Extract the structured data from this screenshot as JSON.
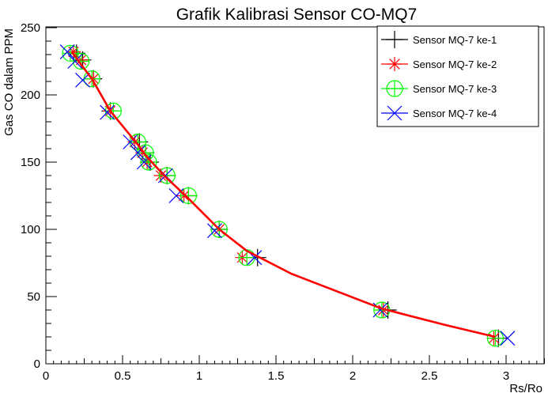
{
  "chart_data": {
    "type": "scatter",
    "title": "Grafik Kalibrasi Sensor CO-MQ7",
    "xlabel": "Rs/Ro",
    "ylabel": "Gas CO dalam PPM",
    "xlim": [
      0,
      3.25
    ],
    "ylim": [
      0,
      250
    ],
    "xticks": [
      "0",
      "0.5",
      "1",
      "1.5",
      "2",
      "2.5",
      "3"
    ],
    "yticks": [
      "0",
      "50",
      "100",
      "150",
      "200",
      "250"
    ],
    "legend_position": "top-right",
    "series": [
      {
        "name": "Sensor MQ-7 ke-1",
        "marker": "plus",
        "color": "#000000",
        "points": [
          [
            0.2,
            231
          ],
          [
            0.24,
            226
          ],
          [
            0.31,
            212
          ],
          [
            0.42,
            188
          ],
          [
            0.61,
            165
          ],
          [
            0.65,
            157
          ],
          [
            0.68,
            150
          ],
          [
            0.79,
            140
          ],
          [
            0.93,
            125
          ],
          [
            1.13,
            100
          ],
          [
            1.38,
            79
          ],
          [
            2.23,
            40
          ],
          [
            2.95,
            19
          ]
        ]
      },
      {
        "name": "Sensor MQ-7 ke-2",
        "marker": "star",
        "color": "#ff0000",
        "points": [
          [
            0.18,
            232
          ],
          [
            0.23,
            226
          ],
          [
            0.31,
            212
          ],
          [
            0.42,
            188
          ],
          [
            0.58,
            165
          ],
          [
            0.63,
            157
          ],
          [
            0.66,
            150
          ],
          [
            0.75,
            140
          ],
          [
            0.9,
            125
          ],
          [
            1.13,
            100
          ],
          [
            1.28,
            79
          ],
          [
            2.2,
            40
          ],
          [
            2.92,
            19
          ]
        ]
      },
      {
        "name": "Sensor MQ-7 ke-3",
        "marker": "circle-plus",
        "color": "#00ff00",
        "points": [
          [
            0.16,
            231
          ],
          [
            0.23,
            225
          ],
          [
            0.3,
            212
          ],
          [
            0.44,
            188
          ],
          [
            0.6,
            165
          ],
          [
            0.65,
            157
          ],
          [
            0.67,
            150
          ],
          [
            0.79,
            140
          ],
          [
            0.93,
            125
          ],
          [
            1.13,
            100
          ],
          [
            1.31,
            79
          ],
          [
            2.19,
            40
          ],
          [
            2.93,
            19
          ]
        ]
      },
      {
        "name": "Sensor MQ-7 ke-4",
        "marker": "x",
        "color": "#0000ff",
        "points": [
          [
            0.14,
            232
          ],
          [
            0.19,
            225
          ],
          [
            0.24,
            211
          ],
          [
            0.4,
            187
          ],
          [
            0.55,
            165
          ],
          [
            0.6,
            157
          ],
          [
            0.64,
            150
          ],
          [
            0.78,
            140
          ],
          [
            0.85,
            125
          ],
          [
            1.1,
            99
          ],
          [
            1.36,
            79
          ],
          [
            2.18,
            40
          ],
          [
            3.01,
            19
          ]
        ]
      }
    ],
    "fit_line": {
      "color": "#ff0000",
      "points": [
        [
          0.17,
          232
        ],
        [
          0.22,
          224
        ],
        [
          0.3,
          212
        ],
        [
          0.42,
          188
        ],
        [
          0.6,
          163
        ],
        [
          0.65,
          155
        ],
        [
          0.78,
          139
        ],
        [
          0.92,
          124
        ],
        [
          1.13,
          100
        ],
        [
          1.31,
          84
        ],
        [
          1.6,
          67
        ],
        [
          2.19,
          41
        ],
        [
          2.6,
          29
        ],
        [
          2.93,
          20
        ]
      ]
    }
  }
}
